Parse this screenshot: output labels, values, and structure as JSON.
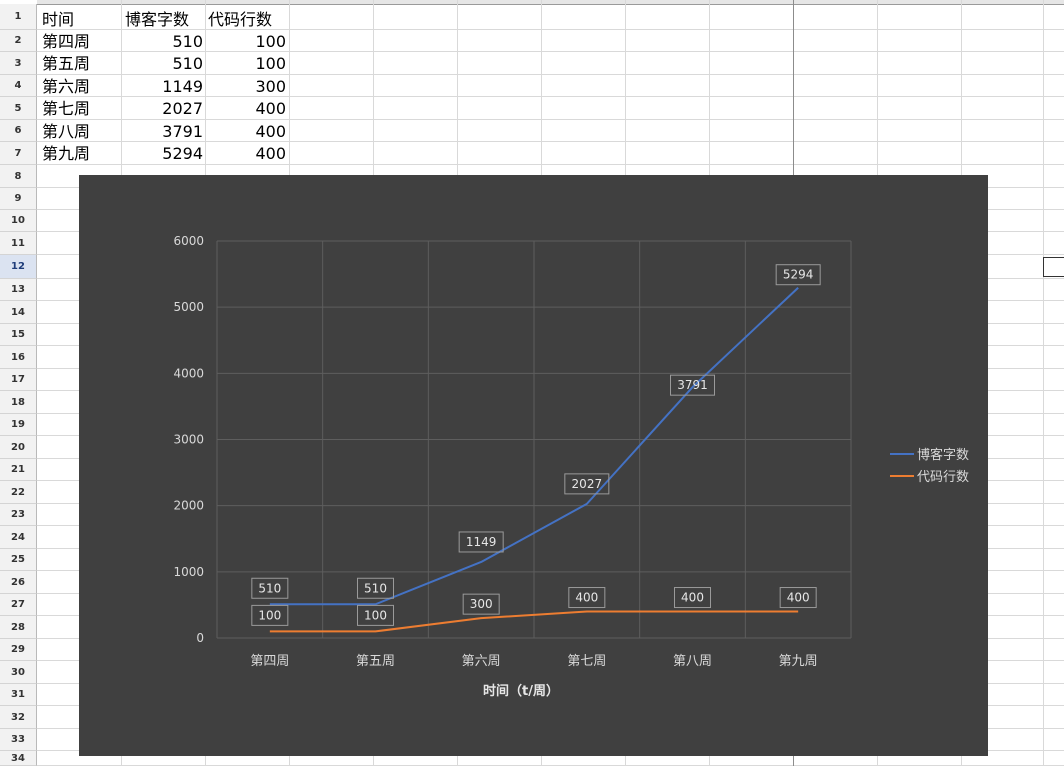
{
  "sheet": {
    "rows": [
      "1",
      "2",
      "3",
      "4",
      "5",
      "6",
      "7",
      "8",
      "9",
      "10",
      "11",
      "12",
      "13",
      "14",
      "15",
      "16",
      "17",
      "18",
      "19",
      "20",
      "21",
      "22",
      "23",
      "24",
      "25",
      "26",
      "27",
      "28",
      "29",
      "30",
      "31",
      "32",
      "33",
      "34"
    ],
    "active_row": "12",
    "header": [
      "时间",
      "博客字数",
      "代码行数"
    ],
    "data": [
      [
        "第四周",
        "510",
        "100"
      ],
      [
        "第五周",
        "510",
        "100"
      ],
      [
        "第六周",
        "1149",
        "300"
      ],
      [
        "第七周",
        "2027",
        "400"
      ],
      [
        "第八周",
        "3791",
        "400"
      ],
      [
        "第九周",
        "5294",
        "400"
      ]
    ]
  },
  "colors": {
    "chart_bg": "#404040",
    "series_blog": "#4472c4",
    "series_code": "#ed7d31",
    "grid": "#5e5e5e",
    "text": "#d9d9d9"
  },
  "chart_data": {
    "type": "line",
    "categories": [
      "第四周",
      "第五周",
      "第六周",
      "第七周",
      "第八周",
      "第九周"
    ],
    "series": [
      {
        "name": "博客字数",
        "values": [
          510,
          510,
          1149,
          2027,
          3791,
          5294
        ]
      },
      {
        "name": "代码行数",
        "values": [
          100,
          100,
          300,
          400,
          400,
          400
        ]
      }
    ],
    "xlabel": "时间（t/周）",
    "ylabel": "",
    "yticks": [
      "0",
      "1000",
      "2000",
      "3000",
      "4000",
      "5000",
      "6000"
    ],
    "ylim": [
      0,
      6000
    ],
    "grid": true,
    "legend": "right",
    "data_labels": true
  }
}
